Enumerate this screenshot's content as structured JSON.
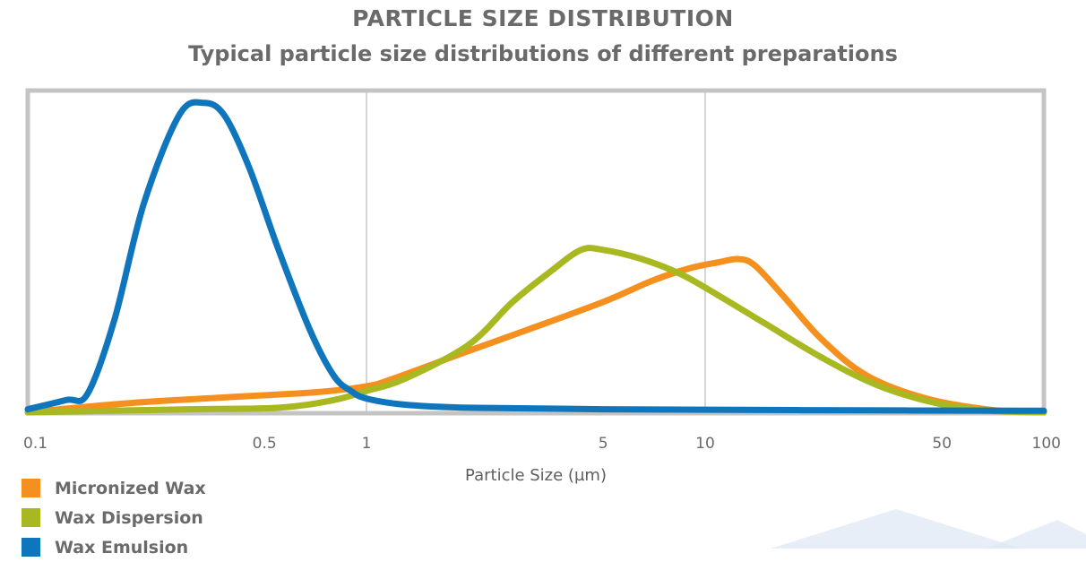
{
  "chart_data": {
    "type": "line",
    "title": "PARTICLE SIZE DISTRIBUTION",
    "subtitle": "Typical particle size distributions of different preparations",
    "xlabel": "Particle Size (µm)",
    "ylabel": "",
    "x_scale": "log",
    "xlim": [
      0.1,
      100
    ],
    "ylim": [
      0,
      1.05
    ],
    "x_ticks": [
      0.1,
      0.5,
      1,
      5,
      10,
      50,
      100
    ],
    "x_tick_labels": [
      "0.1",
      "0.5",
      "1",
      "5",
      "10",
      "50",
      "100"
    ],
    "vertical_gridlines": [
      1,
      10
    ],
    "legend_position": "bottom-left",
    "series": [
      {
        "name": "Micronized Wax",
        "color": "#f5901f",
        "x": [
          0.1,
          0.2,
          0.4,
          0.7,
          1.0,
          1.2,
          2.0,
          3.0,
          5.0,
          7.0,
          9.0,
          11.0,
          12.5,
          14.0,
          17.0,
          22.0,
          30.0,
          45.0,
          70.0,
          100.0
        ],
        "y": [
          0.0,
          0.03,
          0.05,
          0.065,
          0.085,
          0.11,
          0.2,
          0.27,
          0.36,
          0.43,
          0.47,
          0.49,
          0.5,
          0.48,
          0.38,
          0.24,
          0.12,
          0.045,
          0.008,
          0.0
        ]
      },
      {
        "name": "Wax Dispersion",
        "color": "#a8b820",
        "x": [
          0.1,
          0.3,
          0.55,
          0.8,
          1.0,
          1.3,
          2.0,
          2.7,
          3.5,
          4.3,
          5.0,
          6.5,
          8.5,
          11.0,
          15.0,
          22.0,
          32.0,
          48.0,
          70.0,
          100.0
        ],
        "y": [
          0.0,
          0.01,
          0.015,
          0.04,
          0.07,
          0.11,
          0.22,
          0.36,
          0.46,
          0.53,
          0.53,
          0.5,
          0.45,
          0.38,
          0.29,
          0.18,
          0.09,
          0.03,
          0.005,
          0.0
        ]
      },
      {
        "name": "Wax Emulsion",
        "color": "#0f75bc",
        "x": [
          0.1,
          0.13,
          0.15,
          0.18,
          0.22,
          0.28,
          0.33,
          0.38,
          0.45,
          0.55,
          0.68,
          0.8,
          0.9,
          1.0,
          1.3,
          2.0,
          5.0,
          20.0,
          100.0
        ],
        "y": [
          0.01,
          0.04,
          0.06,
          0.3,
          0.68,
          0.97,
          1.01,
          0.97,
          0.8,
          0.53,
          0.27,
          0.12,
          0.07,
          0.045,
          0.025,
          0.015,
          0.01,
          0.007,
          0.005
        ]
      }
    ]
  }
}
